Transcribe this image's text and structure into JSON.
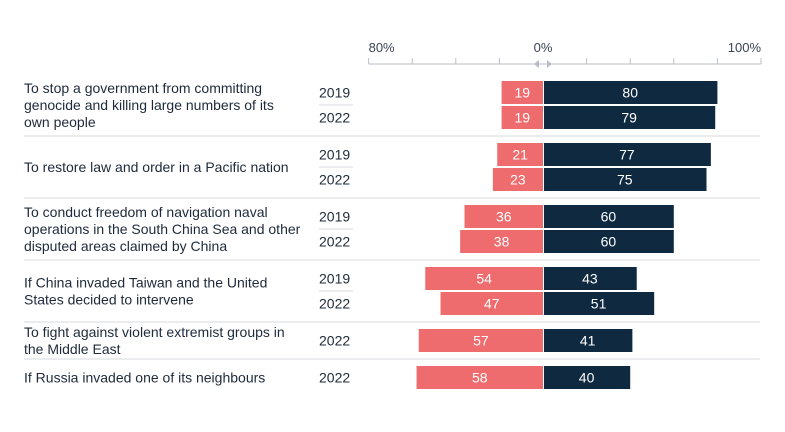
{
  "colors": {
    "negative": "#ee6b6e",
    "positive": "#0f2940",
    "divider": "#d6d9de",
    "axis": "#b9bec6",
    "text": "#1e2a3a",
    "axis_text": "#3a4556"
  },
  "chart_data": {
    "type": "bar",
    "orientation": "horizontal-diverging",
    "axis": {
      "min": -80,
      "max": 100,
      "tick_labels": [
        {
          "value": -80,
          "label": "80%"
        },
        {
          "value": 0,
          "label": "0%"
        },
        {
          "value": 100,
          "label": "100%"
        }
      ],
      "minor_ticks": [
        -80,
        -60,
        -40,
        -20,
        0,
        20,
        40,
        60,
        80,
        100
      ]
    },
    "series": [
      {
        "name": "",
        "color": "#ee6b6e",
        "direction": "left"
      },
      {
        "name": "",
        "color": "#0f2940",
        "direction": "right"
      }
    ],
    "groups": [
      {
        "question": [
          "To stop a government from committing",
          "genocide and killing large numbers of its",
          "own people"
        ],
        "rows": [
          {
            "year": "2019",
            "left": 19,
            "right": 80
          },
          {
            "year": "2022",
            "left": 19,
            "right": 79
          }
        ]
      },
      {
        "question": [
          "To restore law and order in a Pacific nation"
        ],
        "rows": [
          {
            "year": "2019",
            "left": 21,
            "right": 77
          },
          {
            "year": "2022",
            "left": 23,
            "right": 75
          }
        ]
      },
      {
        "question": [
          "To conduct freedom of navigation naval",
          "operations in the South China Sea and other",
          "disputed areas claimed by China"
        ],
        "rows": [
          {
            "year": "2019",
            "left": 36,
            "right": 60
          },
          {
            "year": "2022",
            "left": 38,
            "right": 60
          }
        ]
      },
      {
        "question": [
          "If China invaded Taiwan and the United",
          "States decided to intervene"
        ],
        "rows": [
          {
            "year": "2019",
            "left": 54,
            "right": 43
          },
          {
            "year": "2022",
            "left": 47,
            "right": 51
          }
        ]
      },
      {
        "question": [
          "To fight against violent extremist groups in",
          "the Middle East"
        ],
        "rows": [
          {
            "year": "2022",
            "left": 57,
            "right": 41
          }
        ]
      },
      {
        "question": [
          "If Russia invaded one of its neighbours"
        ],
        "rows": [
          {
            "year": "2022",
            "left": 58,
            "right": 40
          }
        ]
      }
    ]
  }
}
